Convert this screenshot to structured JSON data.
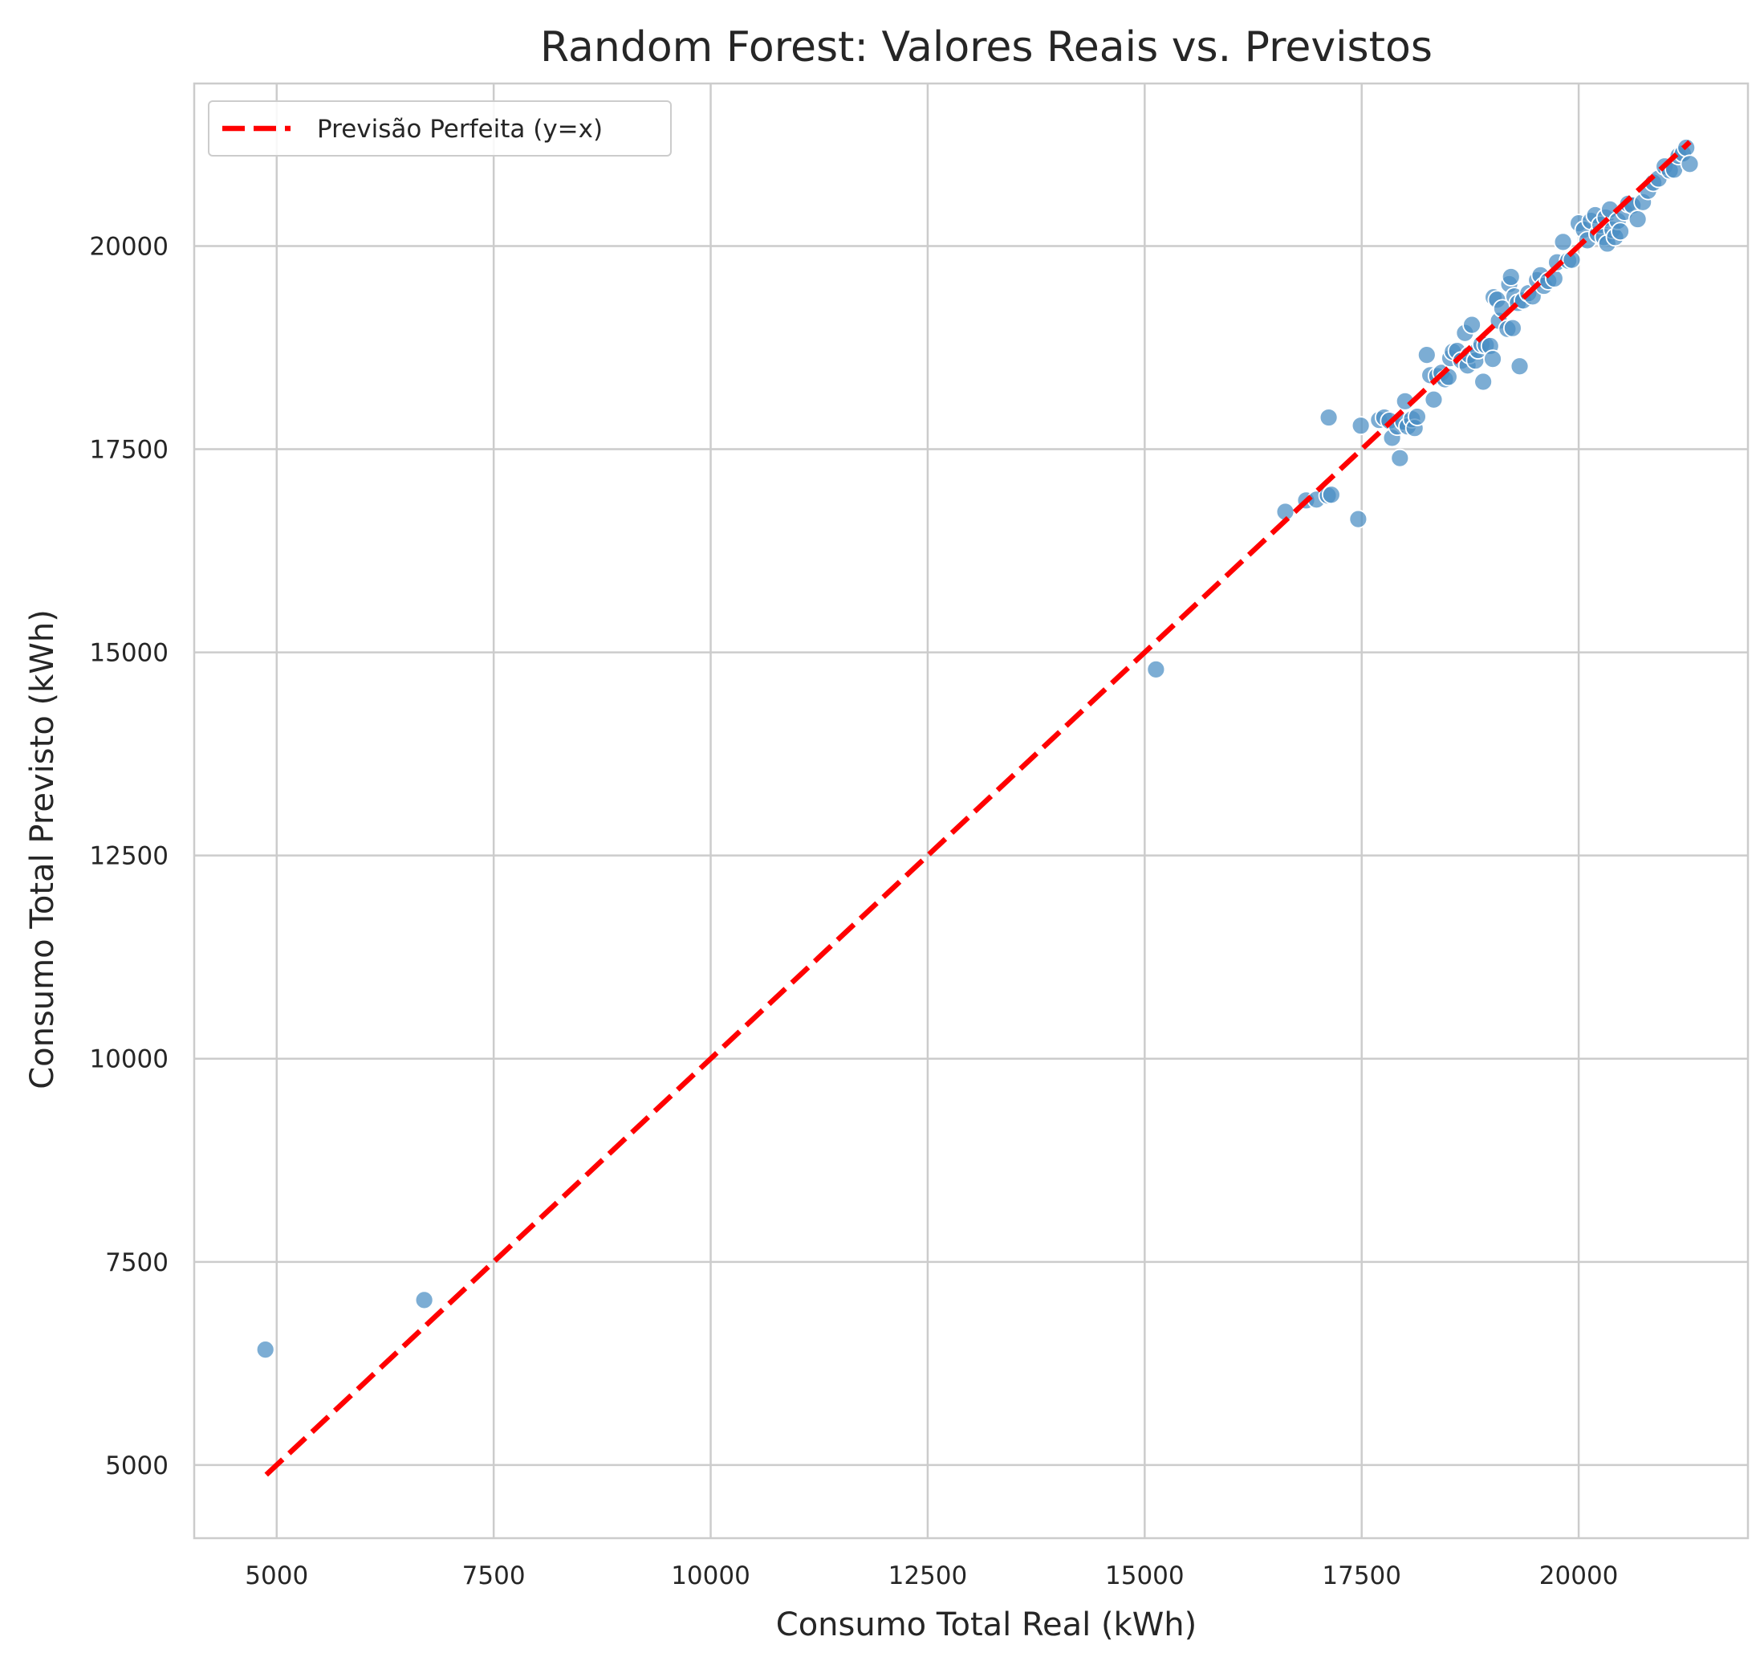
{
  "chart_data": {
    "type": "scatter",
    "title": "Random Forest: Valores Reais vs. Previstos",
    "xlabel": "Consumo Total Real (kWh)",
    "ylabel": "Consumo Total Previsto (kWh)",
    "xlim": [
      4050,
      21950
    ],
    "ylim": [
      4100,
      22000
    ],
    "xticks": [
      5000,
      7500,
      10000,
      12500,
      15000,
      17500,
      20000
    ],
    "yticks": [
      5000,
      7500,
      10000,
      12500,
      15000,
      17500,
      20000
    ],
    "grid": true,
    "legend": {
      "placement": "top-left",
      "entries": [
        "Previsão Perfeita (y=x)"
      ]
    },
    "colors": {
      "points": "#4a8ec4",
      "reference_line": "#ff0000",
      "grid": "#cccccc",
      "axes_edge": "#cccccc"
    },
    "reference_line": {
      "label": "Previsão Perfeita (y=x)",
      "x": [
        4880,
        21280
      ],
      "y": [
        4880,
        21280
      ],
      "style": "dashed"
    },
    "points": [
      {
        "x": 4870,
        "y": 6420
      },
      {
        "x": 6700,
        "y": 7030
      },
      {
        "x": 15130,
        "y": 14790
      },
      {
        "x": 16620,
        "y": 16730
      },
      {
        "x": 16860,
        "y": 16870
      },
      {
        "x": 16980,
        "y": 16880
      },
      {
        "x": 17110,
        "y": 16930
      },
      {
        "x": 17150,
        "y": 16940
      },
      {
        "x": 17120,
        "y": 17890
      },
      {
        "x": 17460,
        "y": 16640
      },
      {
        "x": 17490,
        "y": 17790
      },
      {
        "x": 17700,
        "y": 17860
      },
      {
        "x": 17760,
        "y": 17890
      },
      {
        "x": 17820,
        "y": 17850
      },
      {
        "x": 17850,
        "y": 17640
      },
      {
        "x": 17910,
        "y": 17780
      },
      {
        "x": 17940,
        "y": 17390
      },
      {
        "x": 17980,
        "y": 17840
      },
      {
        "x": 18000,
        "y": 18090
      },
      {
        "x": 18030,
        "y": 17780
      },
      {
        "x": 18080,
        "y": 17870
      },
      {
        "x": 18110,
        "y": 17760
      },
      {
        "x": 18140,
        "y": 17900
      },
      {
        "x": 18250,
        "y": 18660
      },
      {
        "x": 18290,
        "y": 18410
      },
      {
        "x": 18330,
        "y": 18110
      },
      {
        "x": 18370,
        "y": 18400
      },
      {
        "x": 18420,
        "y": 18440
      },
      {
        "x": 18460,
        "y": 18360
      },
      {
        "x": 18500,
        "y": 18390
      },
      {
        "x": 18520,
        "y": 18620
      },
      {
        "x": 18550,
        "y": 18700
      },
      {
        "x": 18600,
        "y": 18710
      },
      {
        "x": 18650,
        "y": 18590
      },
      {
        "x": 18690,
        "y": 18930
      },
      {
        "x": 18720,
        "y": 18530
      },
      {
        "x": 18740,
        "y": 18660
      },
      {
        "x": 18770,
        "y": 19030
      },
      {
        "x": 18810,
        "y": 18590
      },
      {
        "x": 18840,
        "y": 18720
      },
      {
        "x": 18880,
        "y": 18790
      },
      {
        "x": 18900,
        "y": 18330
      },
      {
        "x": 18930,
        "y": 18780
      },
      {
        "x": 18980,
        "y": 18770
      },
      {
        "x": 19010,
        "y": 18610
      },
      {
        "x": 19020,
        "y": 19370
      },
      {
        "x": 19060,
        "y": 19340
      },
      {
        "x": 19080,
        "y": 19080
      },
      {
        "x": 19120,
        "y": 19230
      },
      {
        "x": 19180,
        "y": 18980
      },
      {
        "x": 19200,
        "y": 19530
      },
      {
        "x": 19220,
        "y": 19620
      },
      {
        "x": 19240,
        "y": 18990
      },
      {
        "x": 19260,
        "y": 19380
      },
      {
        "x": 19300,
        "y": 19300
      },
      {
        "x": 19320,
        "y": 18520
      },
      {
        "x": 19360,
        "y": 19330
      },
      {
        "x": 19420,
        "y": 19420
      },
      {
        "x": 19470,
        "y": 19380
      },
      {
        "x": 19520,
        "y": 19580
      },
      {
        "x": 19560,
        "y": 19640
      },
      {
        "x": 19600,
        "y": 19510
      },
      {
        "x": 19650,
        "y": 19570
      },
      {
        "x": 19720,
        "y": 19600
      },
      {
        "x": 19750,
        "y": 19800
      },
      {
        "x": 19820,
        "y": 20050
      },
      {
        "x": 19880,
        "y": 19820
      },
      {
        "x": 19920,
        "y": 19830
      },
      {
        "x": 20000,
        "y": 20280
      },
      {
        "x": 20060,
        "y": 20200
      },
      {
        "x": 20100,
        "y": 20070
      },
      {
        "x": 20140,
        "y": 20310
      },
      {
        "x": 20190,
        "y": 20380
      },
      {
        "x": 20220,
        "y": 20150
      },
      {
        "x": 20250,
        "y": 20260
      },
      {
        "x": 20290,
        "y": 20110
      },
      {
        "x": 20310,
        "y": 20350
      },
      {
        "x": 20330,
        "y": 20030
      },
      {
        "x": 20360,
        "y": 20450
      },
      {
        "x": 20390,
        "y": 20200
      },
      {
        "x": 20420,
        "y": 20110
      },
      {
        "x": 20450,
        "y": 20310
      },
      {
        "x": 20480,
        "y": 20180
      },
      {
        "x": 20530,
        "y": 20420
      },
      {
        "x": 20570,
        "y": 20520
      },
      {
        "x": 20620,
        "y": 20500
      },
      {
        "x": 20680,
        "y": 20330
      },
      {
        "x": 20740,
        "y": 20540
      },
      {
        "x": 20800,
        "y": 20680
      },
      {
        "x": 20860,
        "y": 20780
      },
      {
        "x": 20920,
        "y": 20830
      },
      {
        "x": 20990,
        "y": 20980
      },
      {
        "x": 21050,
        "y": 20930
      },
      {
        "x": 21100,
        "y": 20940
      },
      {
        "x": 21150,
        "y": 21110
      },
      {
        "x": 21200,
        "y": 21140
      },
      {
        "x": 21240,
        "y": 21210
      },
      {
        "x": 21280,
        "y": 21010
      }
    ]
  }
}
